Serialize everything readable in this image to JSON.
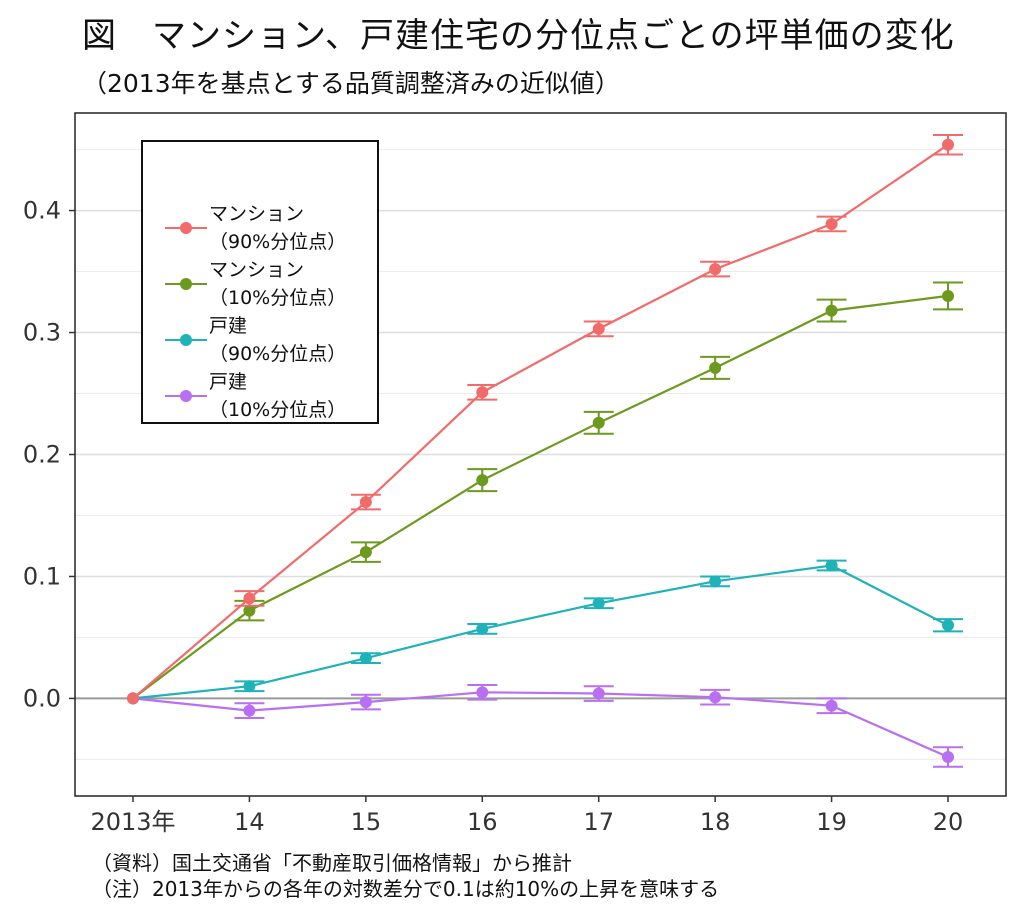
{
  "title": "図　マンション、戸建住宅の分位点ごとの坪単価の変化",
  "subtitle": "（2013年を基点とする品質調整済みの近似値）",
  "notes": [
    "（資料）国土交通省「不動産取引価格情報」から推計",
    "（注）2013年からの各年の対数差分で0.1は約10%の上昇を意味する"
  ],
  "chart_data": {
    "type": "line",
    "title": "図　マンション、戸建住宅の分位点ごとの坪単価の変化",
    "subtitle": "（2013年を基点とする品質調整済みの近似値）",
    "xlabel": "",
    "ylabel": "",
    "categories": [
      "2013年",
      "14",
      "15",
      "16",
      "17",
      "18",
      "19",
      "20"
    ],
    "ylim": [
      -0.08,
      0.48
    ],
    "yticks": [
      0.0,
      0.1,
      0.2,
      0.3,
      0.4
    ],
    "ytick_labels": [
      "0.0",
      "0.1",
      "0.2",
      "0.3",
      "0.4"
    ],
    "grid": true,
    "zero_line": true,
    "error_bars": true,
    "legend_position": "top-left",
    "series": [
      {
        "name": "マンション\n（90%分位点）",
        "color": "#f16b6b",
        "values": [
          0.0,
          0.082,
          0.161,
          0.251,
          0.303,
          0.352,
          0.389,
          0.454
        ],
        "err": [
          0.0,
          0.006,
          0.006,
          0.006,
          0.006,
          0.006,
          0.006,
          0.008
        ]
      },
      {
        "name": "マンション\n（10%分位点）",
        "color": "#6c9a1f",
        "values": [
          0.0,
          0.072,
          0.12,
          0.179,
          0.226,
          0.271,
          0.318,
          0.33
        ],
        "err": [
          0.0,
          0.008,
          0.008,
          0.009,
          0.009,
          0.009,
          0.009,
          0.011
        ]
      },
      {
        "name": "戸建\n（90%分位点）",
        "color": "#1fb2b9",
        "values": [
          0.0,
          0.01,
          0.033,
          0.057,
          0.078,
          0.096,
          0.109,
          0.06
        ],
        "err": [
          0.0,
          0.004,
          0.004,
          0.004,
          0.004,
          0.004,
          0.004,
          0.005
        ]
      },
      {
        "name": "戸建\n（10%分位点）",
        "color": "#b86ff1",
        "values": [
          0.0,
          -0.01,
          -0.003,
          0.005,
          0.004,
          0.001,
          -0.006,
          -0.048
        ],
        "err": [
          0.0,
          0.006,
          0.006,
          0.006,
          0.006,
          0.006,
          0.006,
          0.008
        ]
      }
    ]
  }
}
